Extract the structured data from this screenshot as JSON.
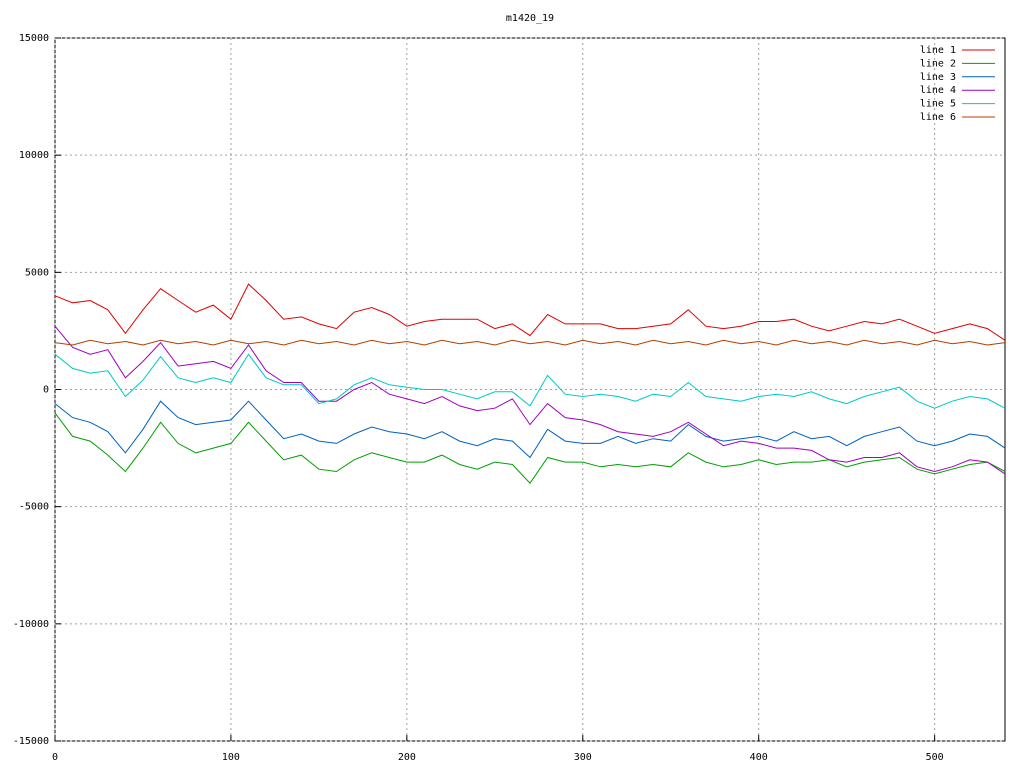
{
  "chart_data": {
    "type": "line",
    "title": "m1420_19",
    "x": [
      0,
      10,
      20,
      30,
      40,
      50,
      60,
      70,
      80,
      90,
      100,
      110,
      120,
      130,
      140,
      150,
      160,
      170,
      180,
      190,
      200,
      210,
      220,
      230,
      240,
      250,
      260,
      270,
      280,
      290,
      300,
      310,
      320,
      330,
      340,
      350,
      360,
      370,
      380,
      390,
      400,
      410,
      420,
      430,
      440,
      450,
      460,
      470,
      480,
      490,
      500,
      510,
      520,
      530,
      540
    ],
    "series": [
      {
        "name": "line 1",
        "color": "#e00000",
        "values": [
          4000,
          3700,
          3800,
          3400,
          2400,
          3400,
          4300,
          3800,
          3300,
          3600,
          3000,
          4500,
          3800,
          3000,
          3100,
          2800,
          2600,
          3300,
          3500,
          3200,
          2700,
          2900,
          3000,
          3000,
          3000,
          2600,
          2800,
          2300,
          3200,
          2800,
          2800,
          2800,
          2600,
          2600,
          2700,
          2800,
          3400,
          2700,
          2600,
          2700,
          2900,
          2900,
          3000,
          2700,
          2500,
          2700,
          2900,
          2800,
          3000,
          2700,
          2400,
          2600,
          2800,
          2600,
          2100
        ]
      },
      {
        "name": "line 2",
        "color": "#00a000",
        "values": [
          -1000,
          -2000,
          -2200,
          -2800,
          -3500,
          -2500,
          -1400,
          -2300,
          -2700,
          -2500,
          -2300,
          -1400,
          -2200,
          -3000,
          -2800,
          -3400,
          -3500,
          -3000,
          -2700,
          -2900,
          -3100,
          -3100,
          -2800,
          -3200,
          -3400,
          -3100,
          -3200,
          -4000,
          -2900,
          -3100,
          -3100,
          -3300,
          -3200,
          -3300,
          -3200,
          -3300,
          -2700,
          -3100,
          -3300,
          -3200,
          -3000,
          -3200,
          -3100,
          -3100,
          -3000,
          -3300,
          -3100,
          -3000,
          -2900,
          -3400,
          -3600,
          -3400,
          -3200,
          -3100,
          -3500
        ]
      },
      {
        "name": "line 3",
        "color": "#0060c0",
        "values": [
          -600,
          -1200,
          -1400,
          -1800,
          -2700,
          -1700,
          -500,
          -1200,
          -1500,
          -1400,
          -1300,
          -500,
          -1300,
          -2100,
          -1900,
          -2200,
          -2300,
          -1900,
          -1600,
          -1800,
          -1900,
          -2100,
          -1800,
          -2200,
          -2400,
          -2100,
          -2200,
          -2900,
          -1700,
          -2200,
          -2300,
          -2300,
          -2000,
          -2300,
          -2100,
          -2200,
          -1500,
          -2000,
          -2200,
          -2100,
          -2000,
          -2200,
          -1800,
          -2100,
          -2000,
          -2400,
          -2000,
          -1800,
          -1600,
          -2200,
          -2400,
          -2200,
          -1900,
          -2000,
          -2500
        ]
      },
      {
        "name": "line 4",
        "color": "#a000c0",
        "values": [
          2700,
          1800,
          1500,
          1700,
          500,
          1200,
          2000,
          1000,
          1100,
          1200,
          900,
          1900,
          800,
          300,
          300,
          -500,
          -500,
          0,
          300,
          -200,
          -400,
          -600,
          -300,
          -700,
          -900,
          -800,
          -400,
          -1500,
          -600,
          -1200,
          -1300,
          -1500,
          -1800,
          -1900,
          -2000,
          -1800,
          -1400,
          -1900,
          -2400,
          -2200,
          -2300,
          -2500,
          -2500,
          -2600,
          -3000,
          -3100,
          -2900,
          -2900,
          -2700,
          -3300,
          -3500,
          -3300,
          -3000,
          -3100,
          -3600
        ]
      },
      {
        "name": "line 5",
        "color": "#00c8c8",
        "values": [
          1500,
          900,
          700,
          800,
          -300,
          400,
          1400,
          500,
          300,
          500,
          300,
          1500,
          500,
          200,
          200,
          -600,
          -400,
          200,
          500,
          200,
          100,
          0,
          0,
          -200,
          -400,
          -100,
          -100,
          -700,
          600,
          -200,
          -300,
          -200,
          -300,
          -500,
          -200,
          -300,
          300,
          -300,
          -400,
          -500,
          -300,
          -200,
          -300,
          -100,
          -400,
          -600,
          -300,
          -100,
          100,
          -500,
          -800,
          -500,
          -300,
          -400,
          -800
        ]
      },
      {
        "name": "line 6",
        "color": "#b04000",
        "values": [
          2000,
          1900,
          2100,
          1950,
          2050,
          1900,
          2100,
          1950,
          2050,
          1900,
          2100,
          1950,
          2050,
          1900,
          2100,
          1950,
          2050,
          1900,
          2100,
          1950,
          2050,
          1900,
          2100,
          1950,
          2050,
          1900,
          2100,
          1950,
          2050,
          1900,
          2100,
          1950,
          2050,
          1900,
          2100,
          1950,
          2050,
          1900,
          2100,
          1950,
          2050,
          1900,
          2100,
          1950,
          2050,
          1900,
          2100,
          1950,
          2050,
          1900,
          2100,
          1950,
          2050,
          1900,
          2000
        ]
      }
    ],
    "xlim": [
      0,
      540
    ],
    "xticks": [
      0,
      100,
      200,
      300,
      400,
      500
    ],
    "ylim": [
      -15000,
      15000
    ],
    "yticks": [
      -15000,
      -10000,
      -5000,
      0,
      5000,
      10000,
      15000
    ],
    "grid": true,
    "legend": "top-right"
  }
}
